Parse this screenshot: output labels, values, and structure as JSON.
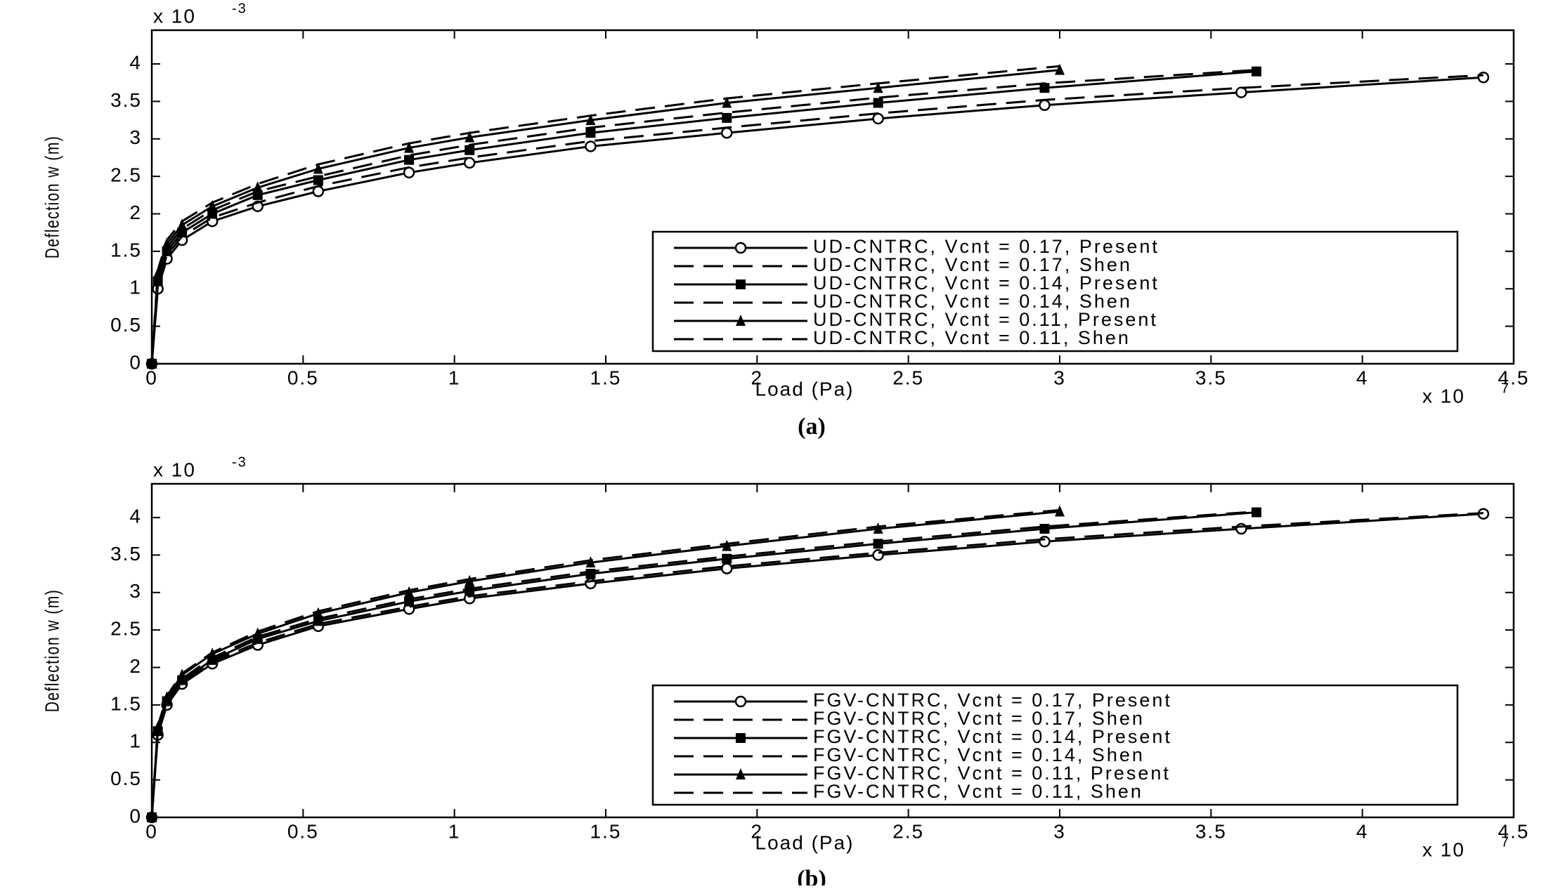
{
  "chart_data": [
    {
      "type": "line",
      "caption": "(a)",
      "xlabel": "Load (Pa)",
      "ylabel": "Deflection w (m)",
      "x_multiplier": {
        "base": "x 10",
        "exponent": "7"
      },
      "y_multiplier": {
        "base": "x 10",
        "exponent": "-3"
      },
      "xlim": [
        0,
        4.5
      ],
      "ylim": [
        0,
        4.45
      ],
      "xticks": [
        0,
        0.5,
        1,
        1.5,
        2,
        2.5,
        3,
        3.5,
        4,
        4.5
      ],
      "yticks": [
        0,
        0.5,
        1,
        1.5,
        2,
        2.5,
        3,
        3.5,
        4
      ],
      "grid": false,
      "legend_location": "lower right",
      "series": [
        {
          "name": "UD-CNTRC, Vcnt = 0.17, Present",
          "color": "#000000",
          "dash": "solid",
          "marker": "circle",
          "x": [
            0,
            0.02,
            0.05,
            0.1,
            0.2,
            0.35,
            0.55,
            0.85,
            1.05,
            1.45,
            1.9,
            2.4,
            2.95,
            3.6,
            4.4
          ],
          "values": [
            0,
            1.0,
            1.4,
            1.65,
            1.9,
            2.1,
            2.3,
            2.55,
            2.68,
            2.9,
            3.08,
            3.27,
            3.45,
            3.62,
            3.82
          ]
        },
        {
          "name": "UD-CNTRC, Vcnt = 0.17, Shen",
          "color": "#000000",
          "dash": "dashed",
          "marker": "none",
          "x": [
            0,
            0.02,
            0.05,
            0.1,
            0.2,
            0.35,
            0.55,
            0.85,
            1.05,
            1.45,
            1.9,
            2.4,
            2.95,
            3.6,
            4.4
          ],
          "values": [
            0,
            1.05,
            1.45,
            1.7,
            1.95,
            2.15,
            2.37,
            2.62,
            2.75,
            2.97,
            3.15,
            3.34,
            3.52,
            3.68,
            3.85
          ]
        },
        {
          "name": "UD-CNTRC, Vcnt = 0.14, Present",
          "color": "#000000",
          "dash": "solid",
          "marker": "square",
          "x": [
            0,
            0.02,
            0.05,
            0.1,
            0.2,
            0.35,
            0.55,
            0.85,
            1.05,
            1.45,
            1.9,
            2.4,
            2.95,
            3.65
          ],
          "values": [
            0,
            1.1,
            1.5,
            1.75,
            2.0,
            2.25,
            2.45,
            2.72,
            2.85,
            3.08,
            3.28,
            3.48,
            3.68,
            3.9
          ]
        },
        {
          "name": "UD-CNTRC, Vcnt = 0.14, Shen",
          "color": "#000000",
          "dash": "dashed",
          "marker": "none",
          "x": [
            0,
            0.02,
            0.05,
            0.1,
            0.2,
            0.35,
            0.55,
            0.85,
            1.05,
            1.45,
            1.9,
            2.4,
            2.95,
            3.65
          ],
          "values": [
            0,
            1.15,
            1.55,
            1.8,
            2.05,
            2.3,
            2.5,
            2.78,
            2.92,
            3.15,
            3.35,
            3.55,
            3.74,
            3.92
          ]
        },
        {
          "name": "UD-CNTRC, Vcnt = 0.11, Present",
          "color": "#000000",
          "dash": "solid",
          "marker": "triangle",
          "x": [
            0,
            0.02,
            0.05,
            0.1,
            0.2,
            0.35,
            0.55,
            0.85,
            1.05,
            1.45,
            1.9,
            2.4,
            3.0
          ],
          "values": [
            0,
            1.2,
            1.6,
            1.85,
            2.1,
            2.35,
            2.6,
            2.88,
            3.02,
            3.25,
            3.48,
            3.68,
            3.92
          ]
        },
        {
          "name": "UD-CNTRC, Vcnt = 0.11, Shen",
          "color": "#000000",
          "dash": "dashed",
          "marker": "none",
          "x": [
            0,
            0.02,
            0.05,
            0.1,
            0.2,
            0.35,
            0.55,
            0.85,
            1.05,
            1.45,
            1.9,
            2.4,
            3.0
          ],
          "values": [
            0,
            1.25,
            1.65,
            1.9,
            2.15,
            2.4,
            2.66,
            2.94,
            3.08,
            3.31,
            3.54,
            3.74,
            3.97
          ]
        }
      ]
    },
    {
      "type": "line",
      "caption": "(b)",
      "xlabel": "Load (Pa)",
      "ylabel": "Deflection w (m)",
      "x_multiplier": {
        "base": "x 10",
        "exponent": "7"
      },
      "y_multiplier": {
        "base": "x 10",
        "exponent": "-3"
      },
      "xlim": [
        0,
        4.5
      ],
      "ylim": [
        0,
        4.45
      ],
      "xticks": [
        0,
        0.5,
        1,
        1.5,
        2,
        2.5,
        3,
        3.5,
        4,
        4.5
      ],
      "yticks": [
        0,
        0.5,
        1,
        1.5,
        2,
        2.5,
        3,
        3.5,
        4
      ],
      "grid": false,
      "legend_location": "lower right",
      "series": [
        {
          "name": "FGV-CNTRC, Vcnt = 0.17, Present",
          "color": "#000000",
          "dash": "solid",
          "marker": "circle",
          "x": [
            0,
            0.02,
            0.05,
            0.1,
            0.2,
            0.35,
            0.55,
            0.85,
            1.05,
            1.45,
            1.9,
            2.4,
            2.95,
            3.6,
            4.4
          ],
          "values": [
            0,
            1.1,
            1.5,
            1.78,
            2.05,
            2.3,
            2.55,
            2.78,
            2.92,
            3.12,
            3.32,
            3.5,
            3.68,
            3.85,
            4.05
          ]
        },
        {
          "name": "FGV-CNTRC, Vcnt = 0.17, Shen",
          "color": "#000000",
          "dash": "dashed",
          "marker": "none",
          "x": [
            0,
            0.02,
            0.05,
            0.1,
            0.2,
            0.35,
            0.55,
            0.85,
            1.05,
            1.45,
            1.9,
            2.4,
            2.95,
            3.6,
            4.4
          ],
          "values": [
            0,
            1.12,
            1.52,
            1.8,
            2.08,
            2.33,
            2.58,
            2.81,
            2.95,
            3.15,
            3.35,
            3.53,
            3.71,
            3.88,
            4.06
          ]
        },
        {
          "name": "FGV-CNTRC, Vcnt = 0.14, Present",
          "color": "#000000",
          "dash": "solid",
          "marker": "square",
          "x": [
            0,
            0.02,
            0.05,
            0.1,
            0.2,
            0.35,
            0.55,
            0.85,
            1.05,
            1.45,
            1.9,
            2.4,
            2.95,
            3.65
          ],
          "values": [
            0,
            1.15,
            1.55,
            1.83,
            2.1,
            2.38,
            2.62,
            2.88,
            3.02,
            3.25,
            3.45,
            3.65,
            3.85,
            4.07
          ]
        },
        {
          "name": "FGV-CNTRC, Vcnt = 0.14, Shen",
          "color": "#000000",
          "dash": "dashed",
          "marker": "none",
          "x": [
            0,
            0.02,
            0.05,
            0.1,
            0.2,
            0.35,
            0.55,
            0.85,
            1.05,
            1.45,
            1.9,
            2.4,
            2.95,
            3.65
          ],
          "values": [
            0,
            1.17,
            1.57,
            1.85,
            2.13,
            2.41,
            2.65,
            2.91,
            3.05,
            3.28,
            3.48,
            3.68,
            3.88,
            4.08
          ]
        },
        {
          "name": "FGV-CNTRC, Vcnt = 0.11, Present",
          "color": "#000000",
          "dash": "solid",
          "marker": "triangle",
          "x": [
            0,
            0.02,
            0.05,
            0.1,
            0.2,
            0.35,
            0.55,
            0.85,
            1.05,
            1.45,
            1.9,
            2.4,
            3.0
          ],
          "values": [
            0,
            1.2,
            1.6,
            1.9,
            2.18,
            2.45,
            2.72,
            3.0,
            3.15,
            3.4,
            3.62,
            3.85,
            4.08
          ]
        },
        {
          "name": "FGV-CNTRC, Vcnt = 0.11, Shen",
          "color": "#000000",
          "dash": "dashed",
          "marker": "none",
          "x": [
            0,
            0.02,
            0.05,
            0.1,
            0.2,
            0.35,
            0.55,
            0.85,
            1.05,
            1.45,
            1.9,
            2.4,
            3.0
          ],
          "values": [
            0,
            1.22,
            1.62,
            1.92,
            2.2,
            2.48,
            2.75,
            3.03,
            3.18,
            3.43,
            3.65,
            3.88,
            4.1
          ]
        }
      ]
    }
  ]
}
